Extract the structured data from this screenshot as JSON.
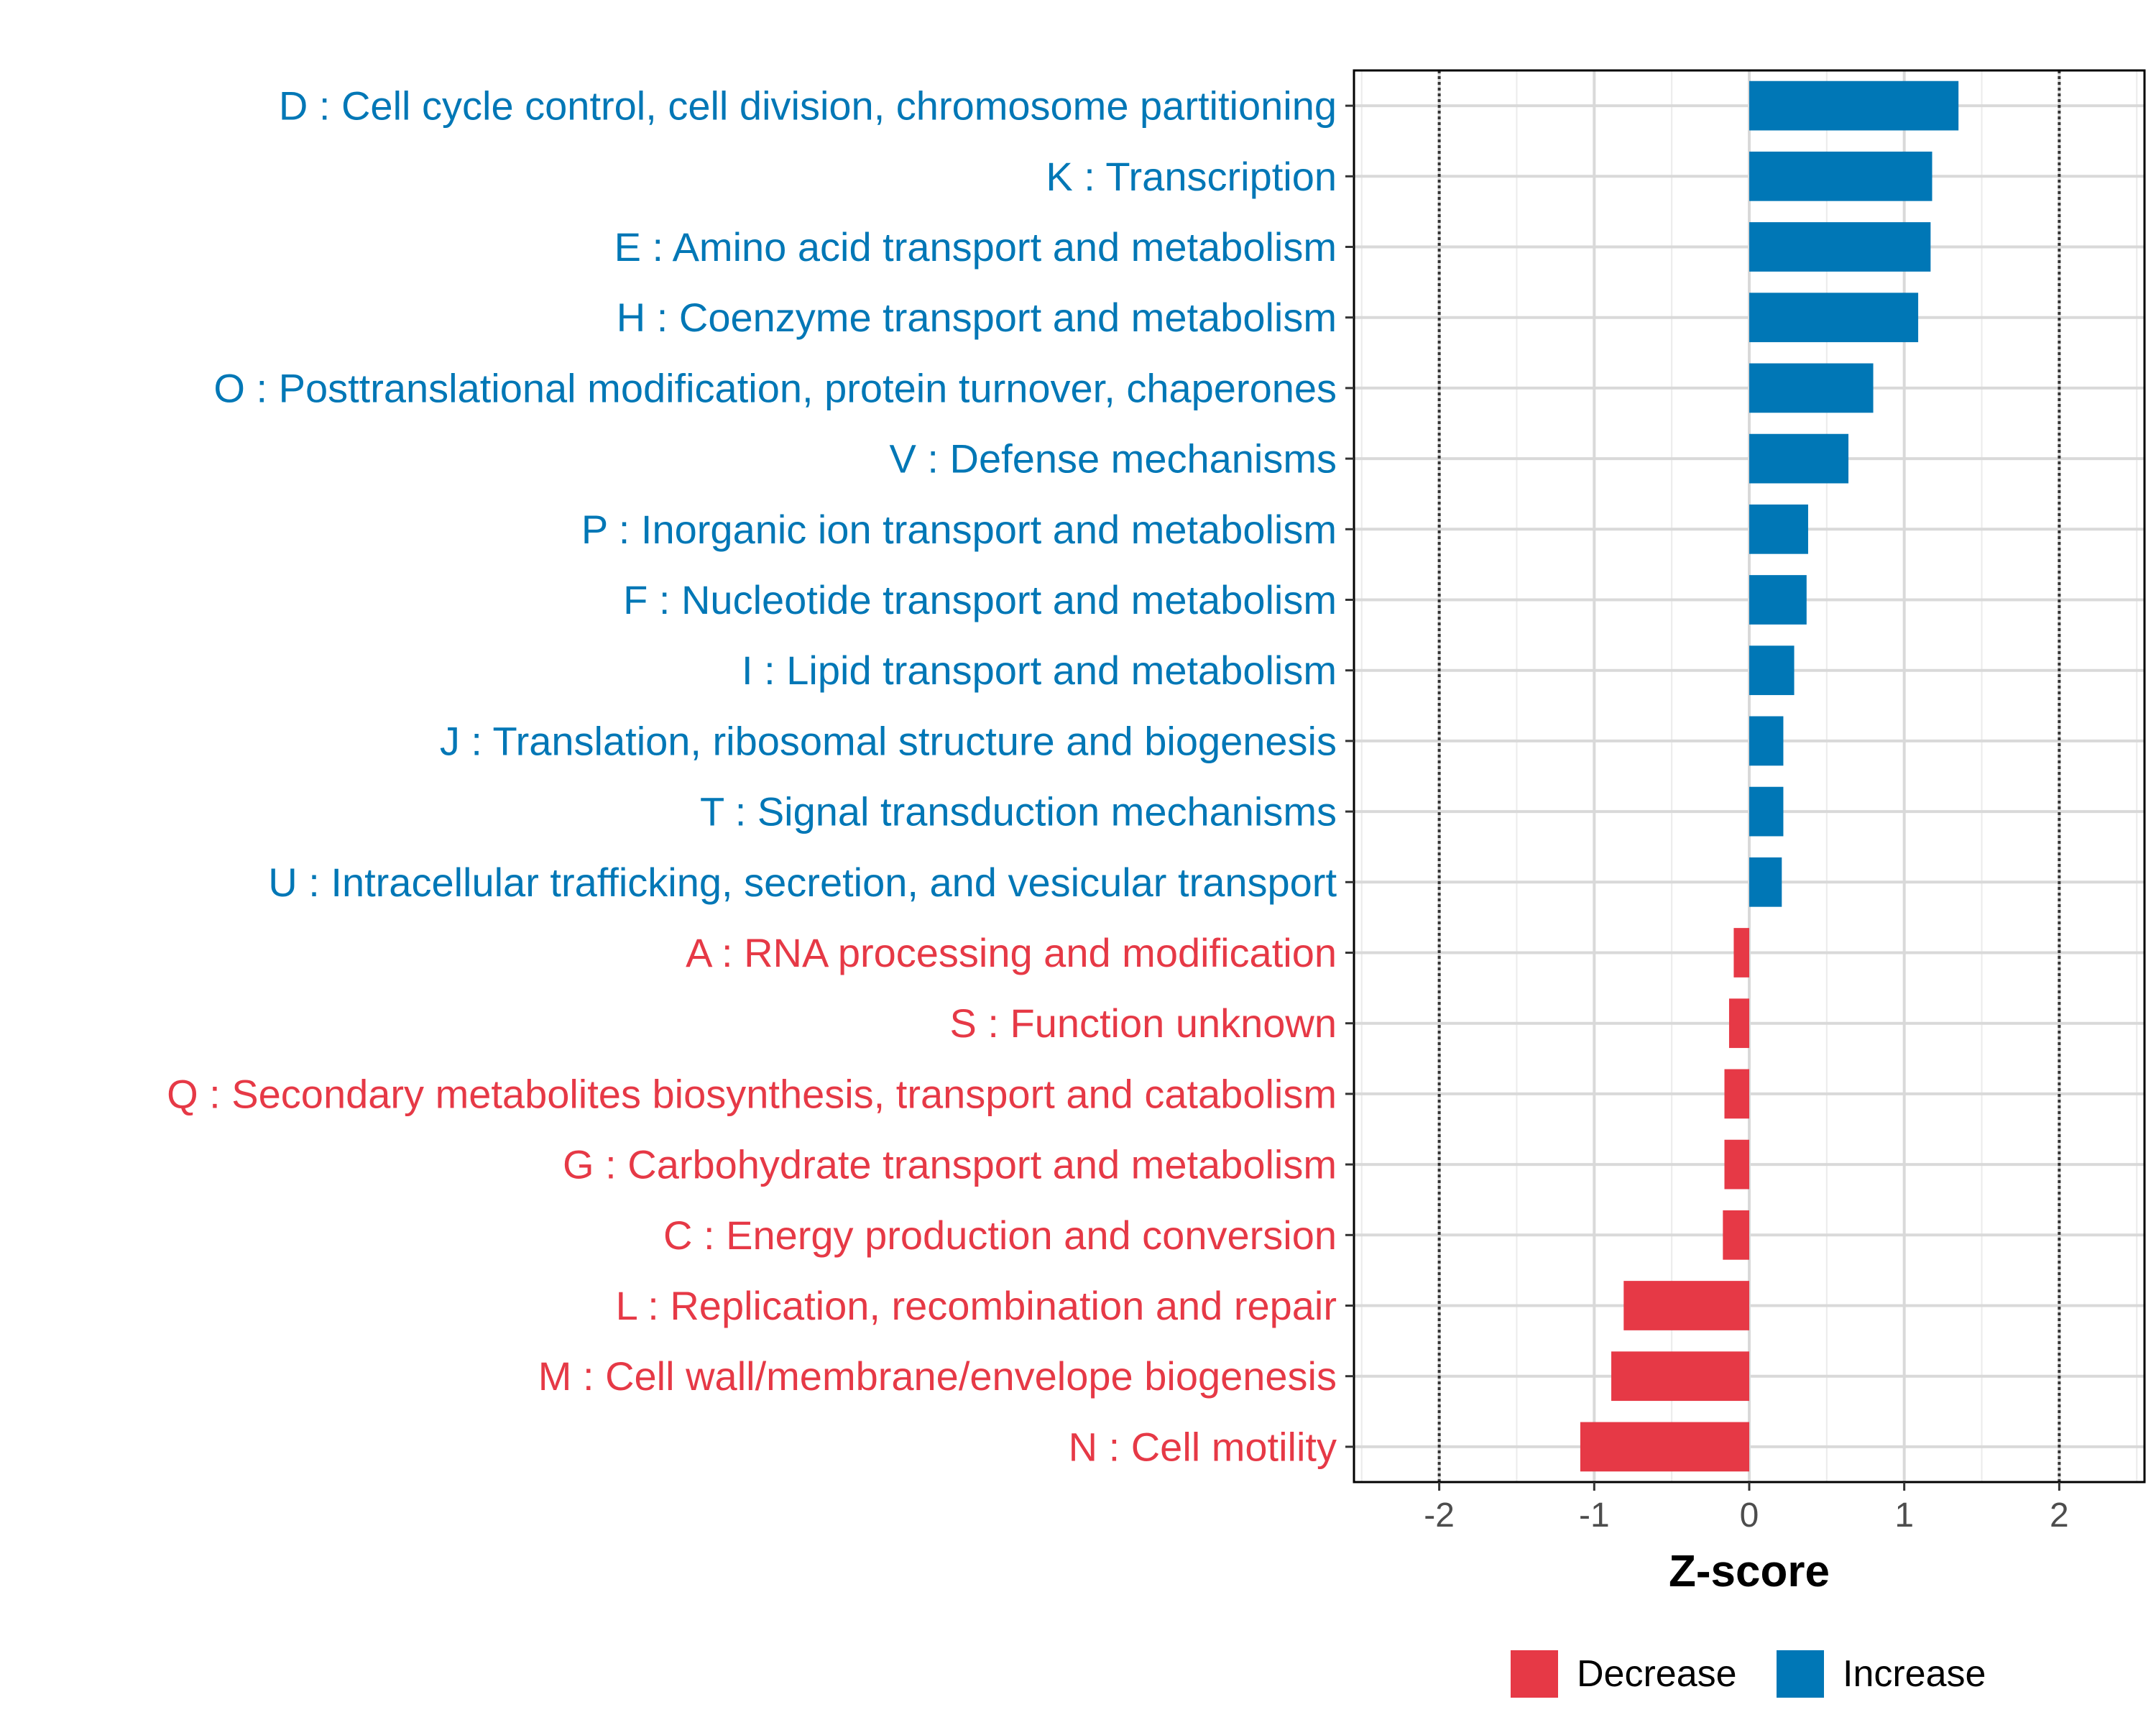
{
  "chart_data": {
    "type": "bar",
    "orientation": "horizontal",
    "xlabel": "Z-score",
    "xlim": [
      -2.55,
      2.55
    ],
    "xticks": [
      -2,
      -1,
      0,
      1,
      2
    ],
    "xtick_labels": [
      "-2",
      "-1",
      "0",
      "1",
      "2"
    ],
    "reference_lines": [
      -2,
      2
    ],
    "grid": true,
    "categories": [
      "D : Cell cycle control, cell division, chromosome partitioning",
      "K : Transcription",
      "E : Amino acid transport and metabolism",
      "H : Coenzyme transport and metabolism",
      "O : Posttranslational modification, protein turnover, chaperones",
      "V : Defense mechanisms",
      "P : Inorganic ion transport and metabolism",
      "F : Nucleotide transport and metabolism",
      "I : Lipid transport and metabolism",
      "J : Translation, ribosomal structure and biogenesis",
      "T : Signal transduction mechanisms",
      "U : Intracellular trafficking, secretion, and vesicular transport",
      "A : RNA processing and modification",
      "S : Function unknown",
      "Q : Secondary metabolites biosynthesis, transport and catabolism",
      "G : Carbohydrate transport and metabolism",
      "C : Energy production and conversion",
      "L : Replication, recombination and repair",
      "M : Cell wall/membrane/envelope biogenesis",
      "N : Cell motility"
    ],
    "values": [
      1.35,
      1.18,
      1.17,
      1.09,
      0.8,
      0.64,
      0.38,
      0.37,
      0.29,
      0.22,
      0.22,
      0.21,
      -0.1,
      -0.13,
      -0.16,
      -0.16,
      -0.17,
      -0.81,
      -0.89,
      -1.09
    ],
    "groups": [
      "Increase",
      "Increase",
      "Increase",
      "Increase",
      "Increase",
      "Increase",
      "Increase",
      "Increase",
      "Increase",
      "Increase",
      "Increase",
      "Increase",
      "Decrease",
      "Decrease",
      "Decrease",
      "Decrease",
      "Decrease",
      "Decrease",
      "Decrease",
      "Decrease"
    ],
    "legend": [
      {
        "name": "Decrease",
        "color": "#e63946"
      },
      {
        "name": "Increase",
        "color": "#0077b6"
      }
    ],
    "legend_position": "bottom"
  }
}
